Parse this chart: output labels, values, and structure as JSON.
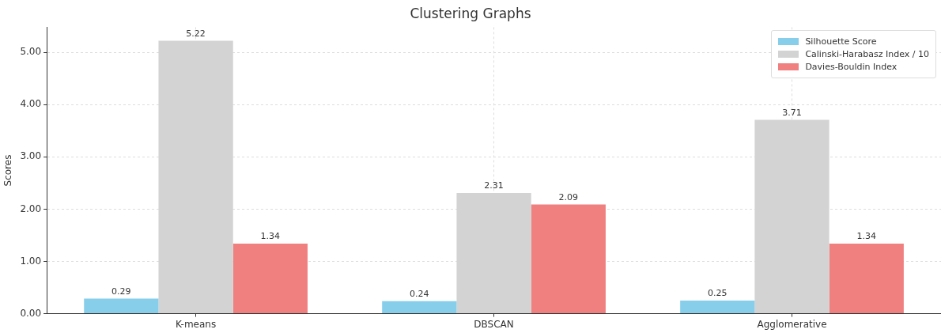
{
  "chart_data": {
    "type": "bar",
    "title": "Clustering Graphs",
    "ylabel": "Scores",
    "categories": [
      "K-means",
      "DBSCAN",
      "Agglomerative"
    ],
    "series": [
      {
        "name": "Silhouette Score",
        "color": "#87ceeb",
        "values": [
          0.29,
          0.24,
          0.25
        ]
      },
      {
        "name": "Calinski-Harabasz Index / 10",
        "color": "#d3d3d3",
        "values": [
          5.22,
          2.31,
          3.71
        ]
      },
      {
        "name": "Davies-Bouldin Index",
        "color": "#f08080",
        "values": [
          1.34,
          2.09,
          1.34
        ]
      }
    ],
    "ylim": [
      0,
      5.48
    ],
    "yticks": [
      {
        "value": 0,
        "label": "0.00"
      },
      {
        "value": 1,
        "label": "1.00"
      },
      {
        "value": 2,
        "label": "2.00"
      },
      {
        "value": 3,
        "label": "3.00"
      },
      {
        "value": 4,
        "label": "4.00"
      },
      {
        "value": 5,
        "label": "5.00"
      }
    ],
    "grid": true,
    "legend": "top right",
    "data_labels": true
  }
}
